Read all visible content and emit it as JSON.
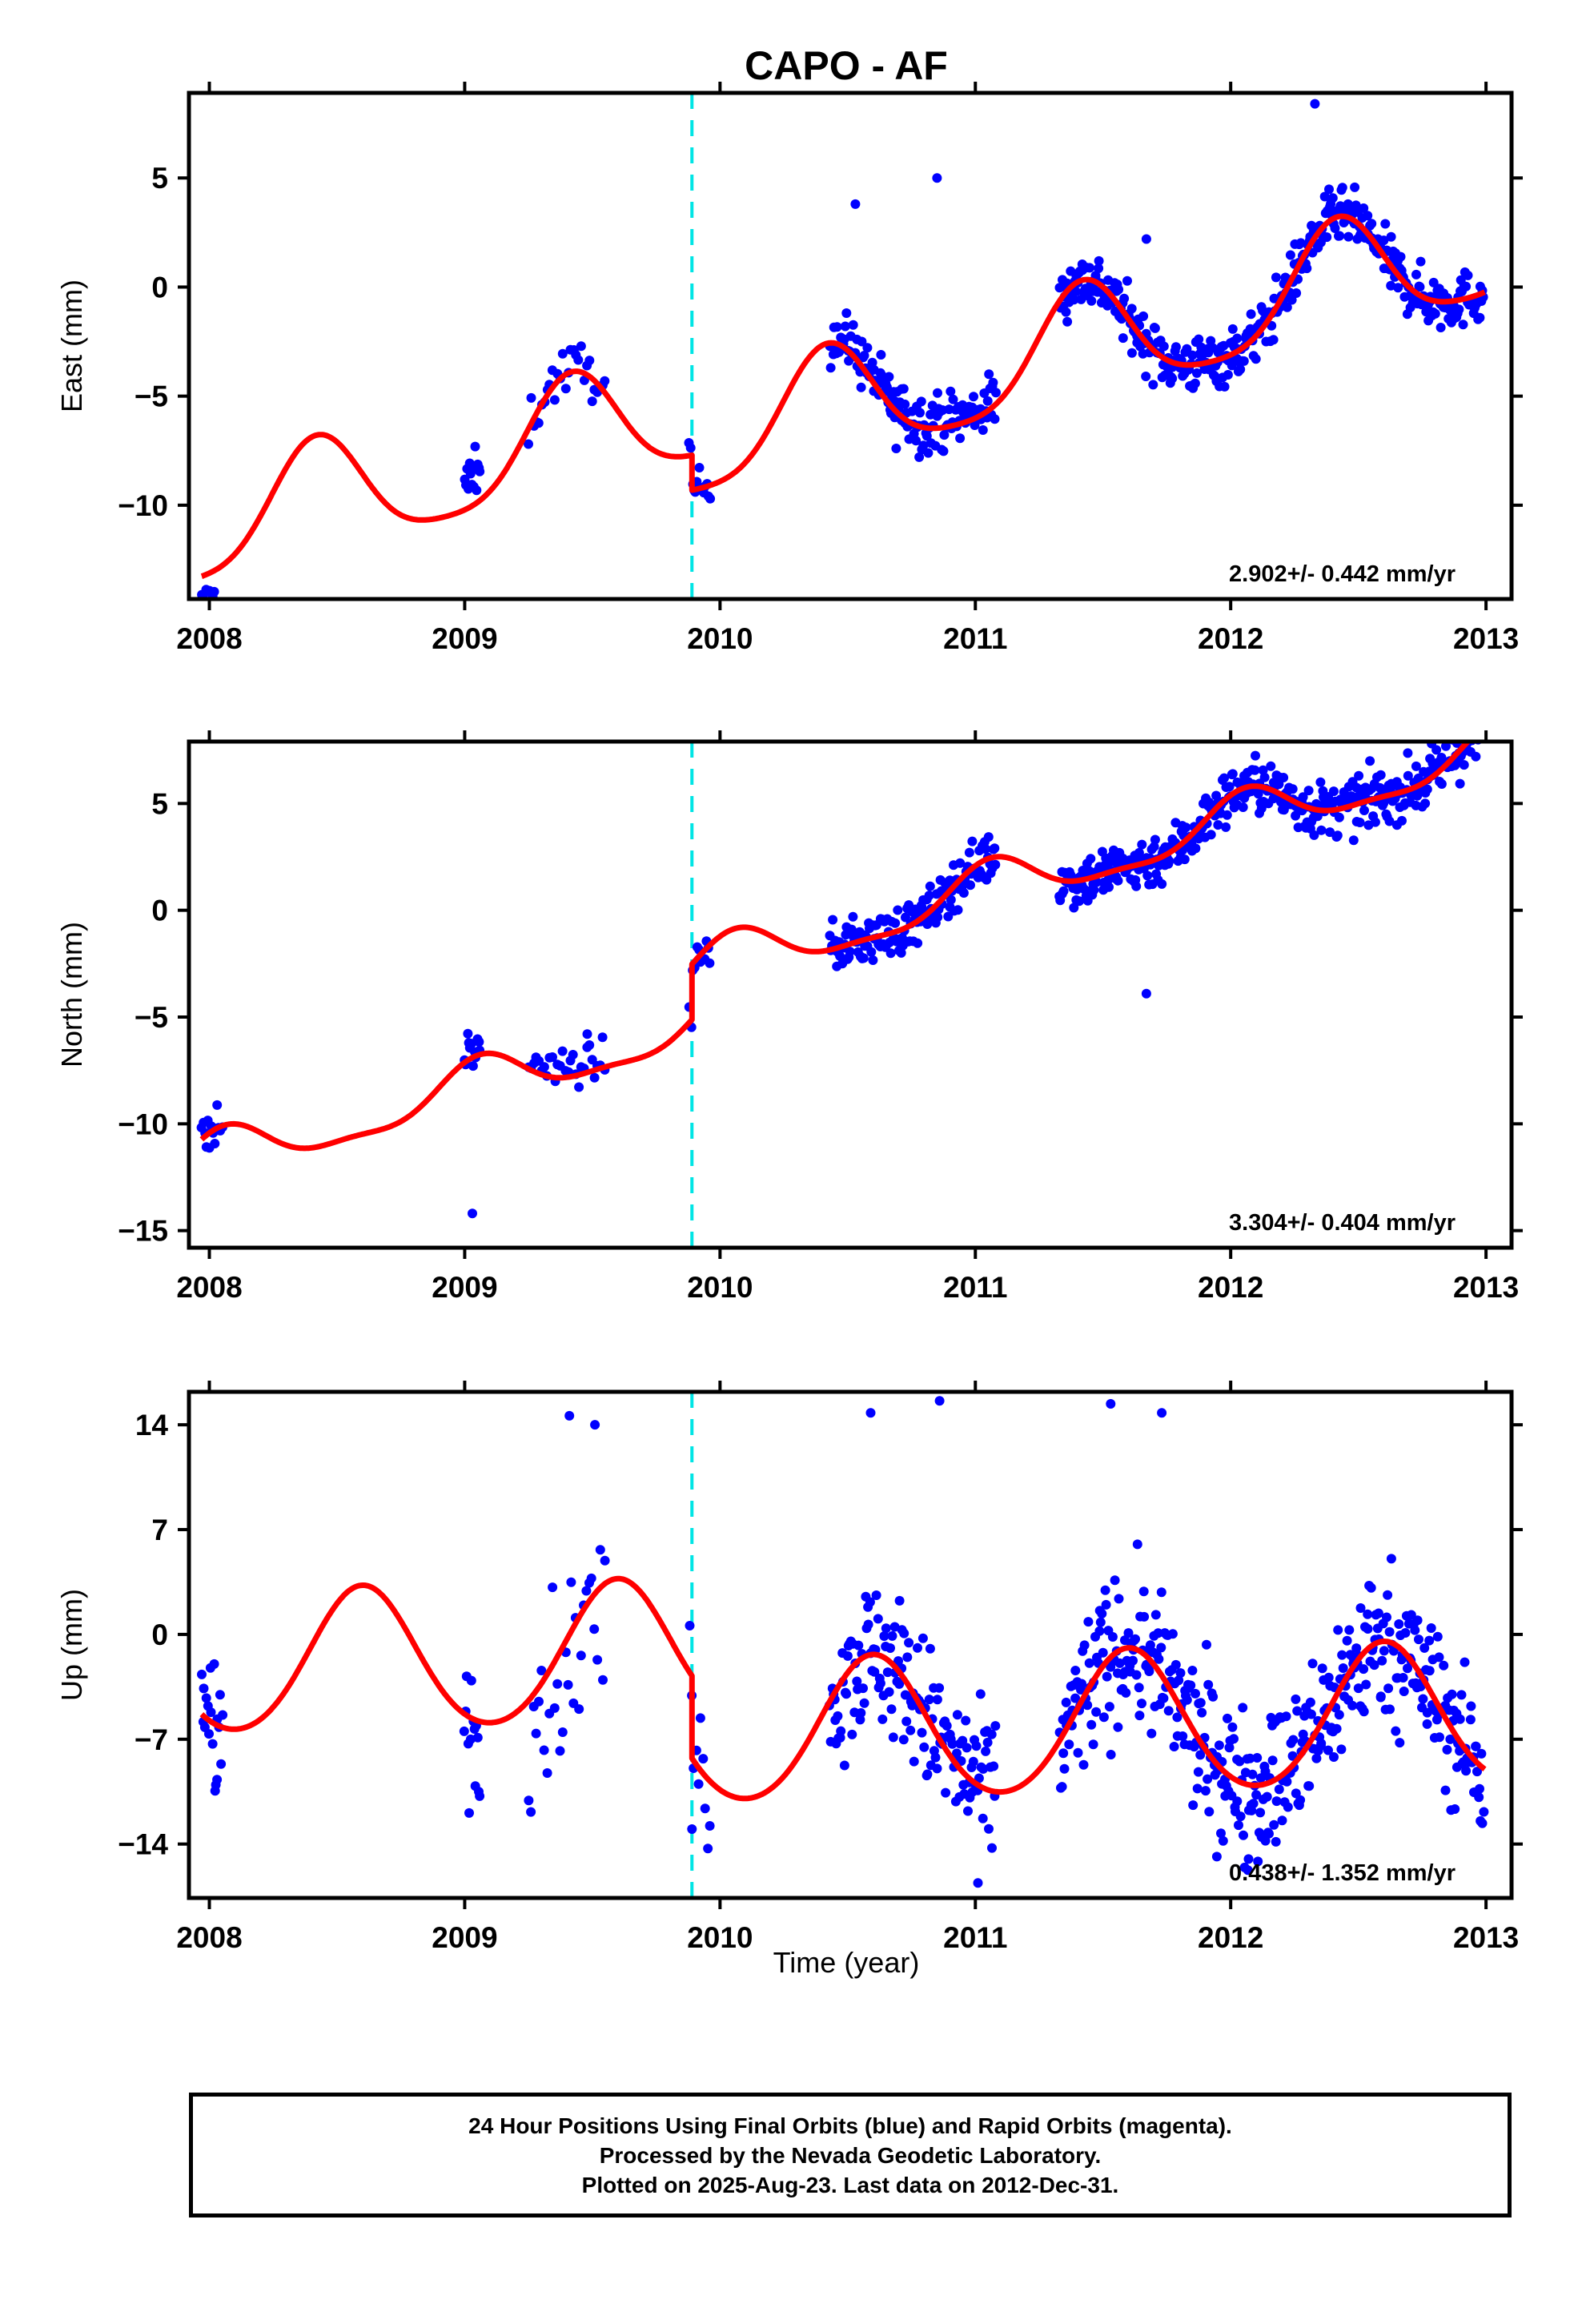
{
  "figure": {
    "title": "CAPO - AF",
    "xlabel": "Time (year)",
    "caption": [
      "24 Hour Positions Using Final Orbits (blue) and Rapid Orbits (magenta).",
      "Processed by the Nevada Geodetic Laboratory.",
      "Plotted on 2025-Aug-23. Last data on 2012-Dec-31."
    ],
    "colors": {
      "final_orbit_points": "#0000ff",
      "model_fit": "#ff0000",
      "event_marker": "#00e5e5",
      "frame": "#000000"
    }
  },
  "chart_data": [
    {
      "type": "scatter",
      "panel": "east",
      "ylabel": "East (mm)",
      "rate_label": "2.902+/- 0.442 mm/yr",
      "xlim": [
        2007.92,
        2013.1
      ],
      "ylim": [
        -14.3,
        8.9
      ],
      "xticks": [
        2008,
        2009,
        2010,
        2011,
        2012,
        2013
      ],
      "yticks": [
        5,
        0,
        -5,
        -10
      ],
      "yticklabels": [
        "5",
        "0",
        "−5",
        "−10"
      ],
      "event_marker_x": 2009.89,
      "model": {
        "name": "fit",
        "rate": 2.902,
        "base_year": 2010.0,
        "base": -5.3,
        "ann_amp": 2.6,
        "ann_peak": 2010.42,
        "semi_amp": 0.5,
        "semi_peak": 2010.42,
        "step_x": 2009.89,
        "step": -1.6
      },
      "series": [
        {
          "name": "final",
          "segments": [
            {
              "x0": 2007.97,
              "x1": 2008.05,
              "n": 14,
              "scatter": 1.3,
              "offset": -1.8
            },
            {
              "x0": 2009.0,
              "x1": 2009.06,
              "n": 14,
              "scatter": 0.9,
              "offset": 1.2
            },
            {
              "x0": 2009.25,
              "x1": 2009.55,
              "n": 30,
              "scatter": 0.8,
              "offset": 0.2
            },
            {
              "x0": 2009.88,
              "x1": 2009.96,
              "n": 14,
              "scatter": 0.6,
              "offset": 0.0
            },
            {
              "x0": 2010.43,
              "x1": 2011.08,
              "n": 150,
              "scatter": 0.9,
              "offset": 0.3
            },
            {
              "x0": 2011.33,
              "x1": 2012.99,
              "n": 420,
              "scatter": 0.9,
              "offset": 0.0
            }
          ],
          "outliers": [
            [
              2010.85,
              5.0
            ],
            [
              2010.78,
              -7.8
            ],
            [
              2010.69,
              -7.4
            ],
            [
              2010.53,
              3.8
            ],
            [
              2012.33,
              8.4
            ],
            [
              2011.67,
              2.2
            ]
          ]
        }
      ]
    },
    {
      "type": "scatter",
      "panel": "north",
      "ylabel": "North (mm)",
      "rate_label": "3.304+/- 0.404 mm/yr",
      "xlim": [
        2007.92,
        2013.1
      ],
      "ylim": [
        -15.8,
        7.9
      ],
      "xticks": [
        2008,
        2009,
        2010,
        2011,
        2012,
        2013
      ],
      "yticks": [
        5,
        0,
        -5,
        -10,
        -15
      ],
      "yticklabels": [
        "5",
        "0",
        "−5",
        "−10",
        "−15"
      ],
      "event_marker_x": 2009.89,
      "model": {
        "name": "fit",
        "rate": 3.304,
        "base_year": 2010.0,
        "base": -5.1,
        "ann_amp": 1.1,
        "ann_peak": 2010.06,
        "semi_amp": 0.35,
        "semi_peak": 2010.06,
        "step_x": 2009.89,
        "step": 2.6
      },
      "series": [
        {
          "name": "final",
          "segments": [
            {
              "x0": 2007.97,
              "x1": 2008.05,
              "n": 14,
              "scatter": 0.7,
              "offset": 0.0
            },
            {
              "x0": 2009.0,
              "x1": 2009.06,
              "n": 12,
              "scatter": 0.7,
              "offset": 0.3
            },
            {
              "x0": 2009.25,
              "x1": 2009.55,
              "n": 30,
              "scatter": 0.6,
              "offset": 0.4
            },
            {
              "x0": 2009.88,
              "x1": 2009.96,
              "n": 12,
              "scatter": 0.6,
              "offset": 0.0
            },
            {
              "x0": 2010.43,
              "x1": 2011.08,
              "n": 150,
              "scatter": 0.8,
              "offset": 0.0
            },
            {
              "x0": 2011.33,
              "x1": 2012.99,
              "n": 420,
              "scatter": 0.9,
              "offset": 0.0
            }
          ],
          "outliers": [
            [
              2009.03,
              -14.2
            ],
            [
              2009.48,
              -5.8
            ],
            [
              2012.96,
              7.2
            ],
            [
              2011.67,
              -3.9
            ],
            [
              2010.9,
              1.4
            ]
          ]
        }
      ]
    },
    {
      "type": "scatter",
      "panel": "up",
      "ylabel": "Up (mm)",
      "rate_label": "0.438+/- 1.352 mm/yr",
      "xlim": [
        2007.92,
        2013.1
      ],
      "ylim": [
        -17.6,
        16.2
      ],
      "xticks": [
        2008,
        2009,
        2010,
        2011,
        2012,
        2013
      ],
      "yticks": [
        14,
        7,
        0,
        -7,
        -14
      ],
      "yticklabels": [
        "14",
        "7",
        "0",
        "−7",
        "−14"
      ],
      "event_marker_x": 2009.89,
      "model": {
        "name": "fit",
        "rate": 0.438,
        "base_year": 2010.0,
        "base": -1.2,
        "ann_amp": 4.7,
        "ann_peak": 2010.6,
        "semi_amp": 0.4,
        "semi_peak": 2010.6,
        "step_x": 2009.89,
        "step": -5.5
      },
      "series": [
        {
          "name": "final",
          "segments": [
            {
              "x0": 2007.97,
              "x1": 2008.05,
              "n": 18,
              "scatter": 3.5,
              "offset": 0.0
            },
            {
              "x0": 2009.0,
              "x1": 2009.06,
              "n": 14,
              "scatter": 3.8,
              "offset": 0.0
            },
            {
              "x0": 2009.25,
              "x1": 2009.55,
              "n": 30,
              "scatter": 4.0,
              "offset": -1.5
            },
            {
              "x0": 2009.88,
              "x1": 2009.96,
              "n": 10,
              "scatter": 3.0,
              "offset": 0.0
            },
            {
              "x0": 2010.43,
              "x1": 2011.08,
              "n": 150,
              "scatter": 3.6,
              "offset": 0.0
            },
            {
              "x0": 2011.33,
              "x1": 2012.99,
              "n": 420,
              "scatter": 3.6,
              "offset": 0.0
            }
          ],
          "outliers": [
            [
              2010.59,
              14.8
            ],
            [
              2010.86,
              15.6
            ],
            [
              2011.53,
              15.4
            ],
            [
              2011.73,
              14.8
            ],
            [
              2011.01,
              -16.6
            ],
            [
              2012.07,
              -15.0
            ],
            [
              2009.41,
              14.6
            ],
            [
              2009.51,
              14.0
            ],
            [
              2008.03,
              -9.7
            ],
            [
              2009.89,
              -13.0
            ]
          ]
        }
      ]
    }
  ]
}
